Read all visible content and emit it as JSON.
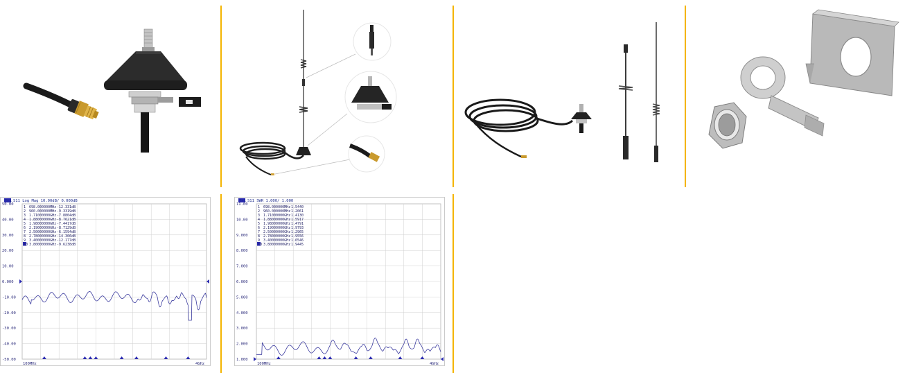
{
  "colors": {
    "separator": "#f4b400",
    "trace": "#3a3a9e",
    "grid": "#cfcfcf",
    "header_bg": "#2b2bb0"
  },
  "gallery": {
    "images": [
      {
        "name": "connector-and-mount-closeup"
      },
      {
        "name": "antenna-with-detail-callouts"
      },
      {
        "name": "antenna-kit-overview"
      },
      {
        "name": "mounting-hardware"
      }
    ]
  },
  "chart_data": [
    {
      "type": "line",
      "header_badge": "Tr1",
      "header": "S11 Log Mag 10.00dB/ 0.000dB",
      "yticks": [
        "50.00",
        "40.00",
        "30.00",
        "20.00",
        "10.00",
        "0.000",
        "-10.00",
        "-20.00",
        "-30.00",
        "-40.00",
        "-50.00"
      ],
      "ylim": [
        -50,
        50
      ],
      "reference_value": 0,
      "markers": [
        {
          "label": "1",
          "freq": "698.000000MHz",
          "value": "-12.331dB"
        },
        {
          "label": "2",
          "freq": "960.000000MHz",
          "value": "-9.3319dB"
        },
        {
          "label": "3",
          "freq": "1.71000000GHz",
          "value": "-7.8804dB"
        },
        {
          "label": "4",
          "freq": "1.88000000GHz",
          "value": "-8.7621dB"
        },
        {
          "label": "5",
          "freq": "1.98000000GHz",
          "value": "-7.4417dB"
        },
        {
          "label": "6",
          "freq": "2.19000000GHz",
          "value": "-8.7129dB"
        },
        {
          "label": "7",
          "freq": "2.50000000GHz",
          "value": "-6.1594dB"
        },
        {
          "label": "8",
          "freq": "2.78000000GHz",
          "value": "-14.306dB"
        },
        {
          "label": "9",
          "freq": "3.40000000GHz",
          "value": "-12.177dB"
        },
        {
          "label": "10",
          "freq": "3.80000000GHz",
          "value": "-9.6238dB"
        }
      ],
      "x_start_label": "100MHz",
      "x_end_label": "4GHz"
    },
    {
      "type": "line",
      "header_badge": "Tr1",
      "header": "S11 SWR 1.000/ 1.000",
      "yticks": [
        "11.00",
        "10.00",
        "9.000",
        "8.000",
        "7.000",
        "6.000",
        "5.000",
        "4.000",
        "3.000",
        "2.000",
        "1.000"
      ],
      "ylim": [
        1,
        11
      ],
      "reference_value": 1,
      "markers": [
        {
          "label": "1",
          "freq": "698.000000MHz",
          "value": "1.5440"
        },
        {
          "label": "2",
          "freq": "960.000000MHz",
          "value": "1.2061"
        },
        {
          "label": "3",
          "freq": "1.71000000GHz",
          "value": "1.4130"
        },
        {
          "label": "4",
          "freq": "1.88000000GHz",
          "value": "1.5917"
        },
        {
          "label": "5",
          "freq": "1.98000000GHz",
          "value": "1.4791"
        },
        {
          "label": "6",
          "freq": "2.19000000GHz",
          "value": "1.9793"
        },
        {
          "label": "7",
          "freq": "2.50000000GHz",
          "value": "1.2965"
        },
        {
          "label": "8",
          "freq": "2.78000000GHz",
          "value": "1.9556"
        },
        {
          "label": "9",
          "freq": "3.40000000GHz",
          "value": "1.6546"
        },
        {
          "label": "10",
          "freq": "3.80000000GHz",
          "value": "1.9445"
        }
      ],
      "x_start_label": "100MHz",
      "x_end_label": "4GHz"
    }
  ]
}
